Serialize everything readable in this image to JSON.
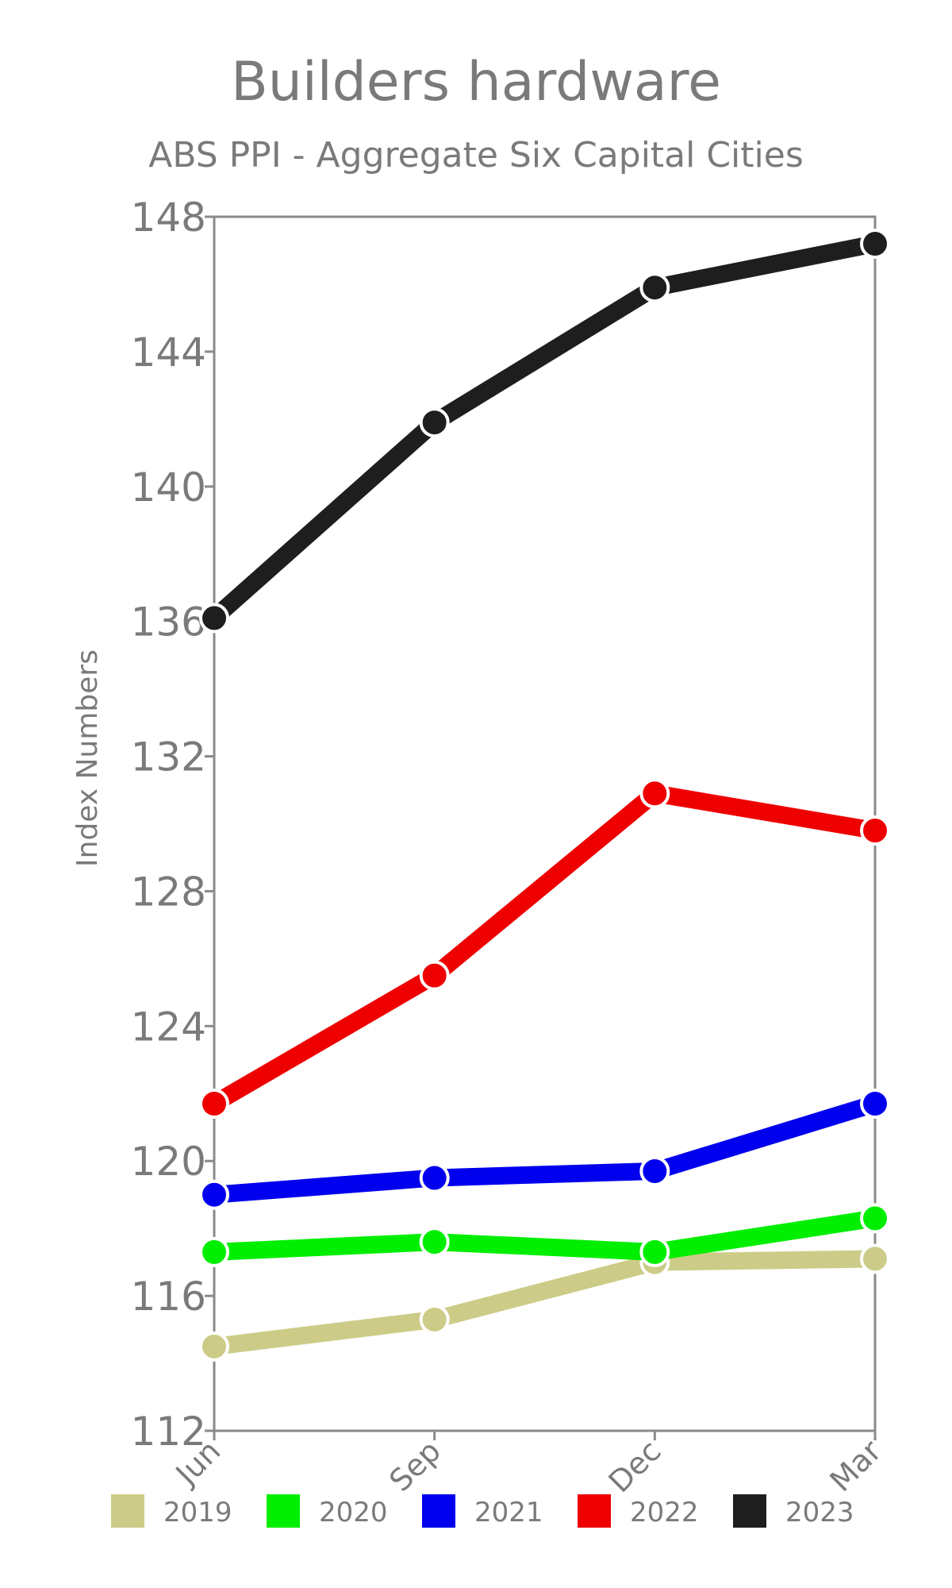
{
  "chart_data": {
    "type": "line",
    "title": "Builders hardware",
    "subtitle": "ABS PPI - Aggregate Six Capital Cities",
    "xlabel": "",
    "ylabel": "Index Numbers",
    "categories": [
      "Jun",
      "Sep",
      "Dec",
      "Mar"
    ],
    "ylim": [
      112,
      148
    ],
    "yticks": [
      112,
      116,
      120,
      124,
      128,
      132,
      136,
      140,
      144,
      148
    ],
    "legend_position": "bottom",
    "series": [
      {
        "name": "2019",
        "color": "#cccc88",
        "values": [
          114.5,
          115.3,
          117.0,
          117.1
        ]
      },
      {
        "name": "2020",
        "color": "#00ee00",
        "values": [
          117.3,
          117.6,
          117.3,
          118.3
        ]
      },
      {
        "name": "2021",
        "color": "#0000ee",
        "values": [
          119.0,
          119.5,
          119.7,
          121.7
        ]
      },
      {
        "name": "2022",
        "color": "#ee0000",
        "values": [
          121.7,
          125.5,
          130.9,
          129.8
        ]
      },
      {
        "name": "2023",
        "color": "#1e1e1e",
        "values": [
          136.1,
          141.9,
          145.9,
          147.2
        ]
      }
    ]
  }
}
